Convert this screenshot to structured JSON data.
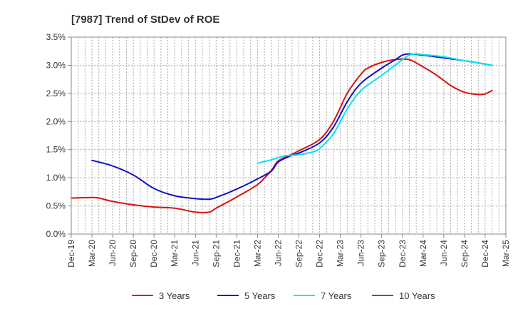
{
  "chart_data": {
    "type": "line",
    "title": "[7987]  Trend of StDev of ROE",
    "xlabel": "",
    "ylabel": "",
    "x_ticks": [
      "Dec-19",
      "Mar-20",
      "Jun-20",
      "Sep-20",
      "Dec-20",
      "Mar-21",
      "Jun-21",
      "Sep-21",
      "Dec-21",
      "Mar-22",
      "Jun-22",
      "Sep-22",
      "Dec-22",
      "Mar-23",
      "Jun-23",
      "Sep-23",
      "Dec-23",
      "Mar-24",
      "Jun-24",
      "Sep-24",
      "Dec-24",
      "Mar-25"
    ],
    "y_ticks": [
      "0.0%",
      "0.5%",
      "1.0%",
      "1.5%",
      "2.0%",
      "2.5%",
      "3.0%",
      "3.5%"
    ],
    "ylim": [
      0,
      3.5
    ],
    "grid": true,
    "legend_position": "bottom",
    "series": [
      {
        "name": "3 Years",
        "color": "#dd1111",
        "points": [
          [
            "Dec-19",
            0.64
          ],
          [
            "Mar-20",
            0.65
          ],
          [
            "Apr-20",
            0.64
          ],
          [
            "Jun-20",
            0.58
          ],
          [
            "Sep-20",
            0.52
          ],
          [
            "Dec-20",
            0.48
          ],
          [
            "Mar-21",
            0.46
          ],
          [
            "Jun-21",
            0.39
          ],
          [
            "Aug-21",
            0.39
          ],
          [
            "Sep-21",
            0.46
          ],
          [
            "Dec-21",
            0.66
          ],
          [
            "Mar-22",
            0.88
          ],
          [
            "May-22",
            1.13
          ],
          [
            "Jun-22",
            1.3
          ],
          [
            "Aug-22",
            1.42
          ],
          [
            "Sep-22",
            1.48
          ],
          [
            "Dec-22",
            1.68
          ],
          [
            "Feb-23",
            2.0
          ],
          [
            "Apr-23",
            2.5
          ],
          [
            "Jun-23",
            2.84
          ],
          [
            "Jul-23",
            2.95
          ],
          [
            "Sep-23",
            3.05
          ],
          [
            "Nov-23",
            3.1
          ],
          [
            "Jan-24",
            3.1
          ],
          [
            "Mar-24",
            2.97
          ],
          [
            "May-24",
            2.82
          ],
          [
            "Jul-24",
            2.64
          ],
          [
            "Sep-24",
            2.52
          ],
          [
            "Nov-24",
            2.48
          ],
          [
            "Dec-24",
            2.49
          ],
          [
            "Jan-25",
            2.55
          ]
        ]
      },
      {
        "name": "5 Years",
        "color": "#1111cc",
        "points": [
          [
            "Mar-20",
            1.31
          ],
          [
            "Jun-20",
            1.21
          ],
          [
            "Sep-20",
            1.05
          ],
          [
            "Dec-20",
            0.81
          ],
          [
            "Mar-21",
            0.68
          ],
          [
            "Jun-21",
            0.63
          ],
          [
            "Aug-21",
            0.62
          ],
          [
            "Sep-21",
            0.65
          ],
          [
            "Dec-21",
            0.8
          ],
          [
            "Mar-22",
            0.98
          ],
          [
            "May-22",
            1.12
          ],
          [
            "Jun-22",
            1.28
          ],
          [
            "Aug-22",
            1.4
          ],
          [
            "Sep-22",
            1.44
          ],
          [
            "Dec-22",
            1.62
          ],
          [
            "Feb-23",
            1.9
          ],
          [
            "Apr-23",
            2.35
          ],
          [
            "Jun-23",
            2.68
          ],
          [
            "Sep-23",
            2.95
          ],
          [
            "Nov-23",
            3.1
          ],
          [
            "Dec-23",
            3.18
          ],
          [
            "Jan-24",
            3.2
          ],
          [
            "Mar-24",
            3.18
          ],
          [
            "Jun-24",
            3.13
          ],
          [
            "Sep-24",
            3.08
          ],
          [
            "Jan-25",
            3.0
          ]
        ]
      },
      {
        "name": "7 Years",
        "color": "#00e5ee",
        "points": [
          [
            "Mar-22",
            1.26
          ],
          [
            "May-22",
            1.32
          ],
          [
            "Jul-22",
            1.39
          ],
          [
            "Sep-22",
            1.41
          ],
          [
            "Nov-22",
            1.46
          ],
          [
            "Dec-22",
            1.52
          ],
          [
            "Feb-23",
            1.78
          ],
          [
            "Apr-23",
            2.22
          ],
          [
            "Jun-23",
            2.55
          ],
          [
            "Sep-23",
            2.82
          ],
          [
            "Dec-23",
            3.1
          ],
          [
            "Jan-24",
            3.18
          ],
          [
            "Feb-24",
            3.2
          ],
          [
            "Mar-24",
            3.19
          ],
          [
            "Jun-24",
            3.15
          ],
          [
            "Sep-24",
            3.08
          ],
          [
            "Jan-25",
            3.0
          ]
        ]
      },
      {
        "name": "10 Years",
        "color": "#118811",
        "points": []
      }
    ]
  }
}
